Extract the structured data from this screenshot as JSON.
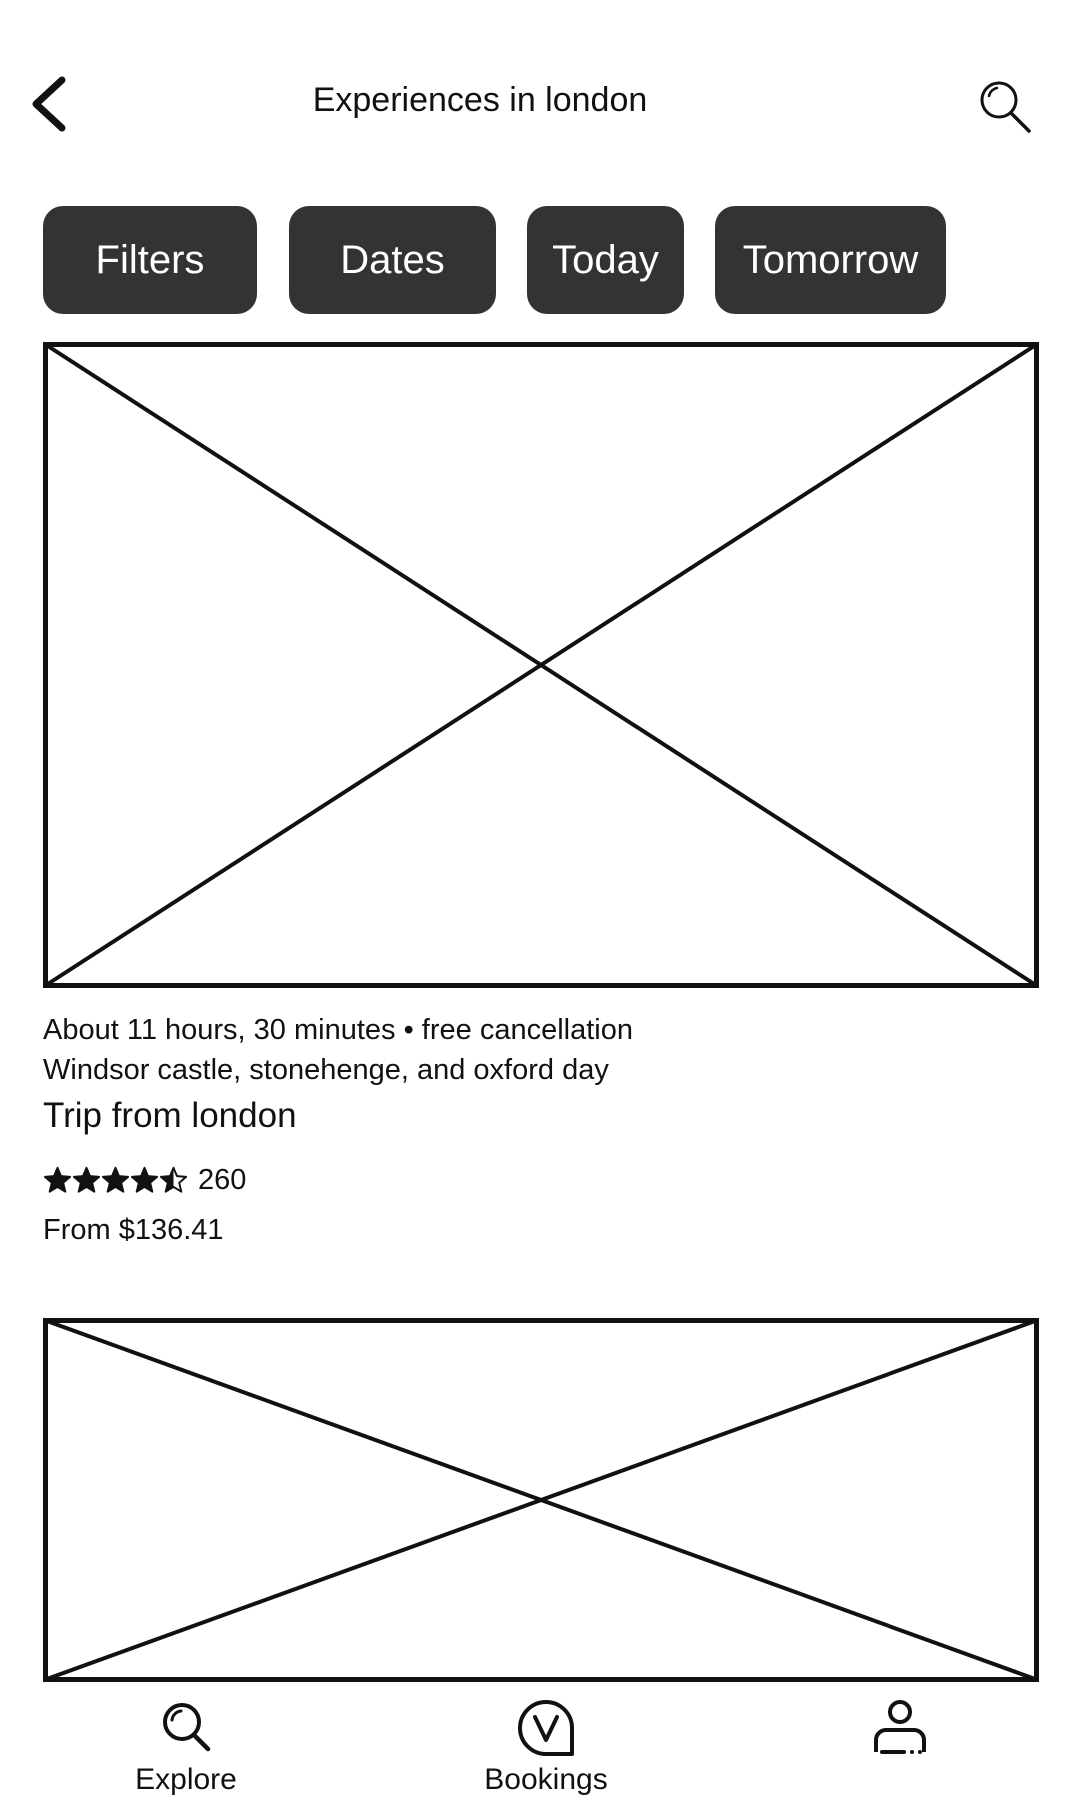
{
  "header": {
    "back_icon": "chevron-left-icon",
    "title": "Experiences in london",
    "search_icon": "search-icon"
  },
  "filters": [
    {
      "label": "Filters"
    },
    {
      "label": "Dates"
    },
    {
      "label": "Today"
    },
    {
      "label": "Tomorrow"
    }
  ],
  "listings": [
    {
      "image": "image-placeholder",
      "duration_line": "About 11 hours, 30 minutes • free cancellation",
      "title_line1": "Windsor castle, stonehenge, and oxford day",
      "title_line2": "Trip from london",
      "rating": 4.5,
      "rating_max": 5,
      "review_count": "260",
      "price": "From $136.41"
    },
    {
      "image": "image-placeholder"
    }
  ],
  "bottom_nav": {
    "items": [
      {
        "label": "Explore",
        "icon": "search-icon"
      },
      {
        "label": "Bookings",
        "icon": "bookings-icon"
      },
      {
        "label": "",
        "icon": "profile-icon"
      }
    ]
  },
  "colors": {
    "chip_background": "#333333",
    "chip_text": "#ffffff",
    "text": "#111111",
    "background": "#ffffff"
  }
}
